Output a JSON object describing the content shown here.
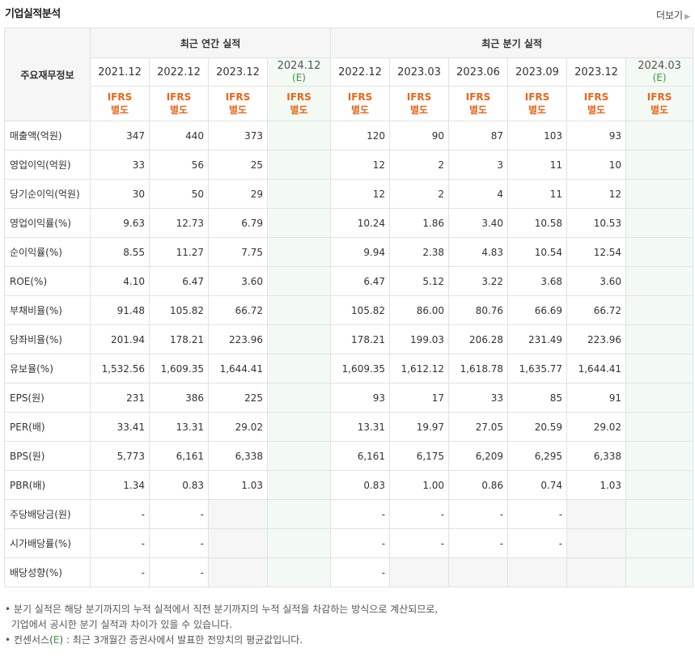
{
  "header": {
    "title": "기업실적분석",
    "more_label": "더보기"
  },
  "table": {
    "row_header_label": "주요재무정보",
    "annual_group_label": "최근 연간 실적",
    "quarter_group_label": "최근 분기 실적",
    "periods": [
      {
        "label": "2021.12",
        "est": false
      },
      {
        "label": "2022.12",
        "est": false
      },
      {
        "label": "2023.12",
        "est": false
      },
      {
        "label": "2024.12",
        "est": true,
        "est_mark": "(E)"
      },
      {
        "label": "2022.12",
        "est": false
      },
      {
        "label": "2023.03",
        "est": false
      },
      {
        "label": "2023.06",
        "est": false
      },
      {
        "label": "2023.09",
        "est": false
      },
      {
        "label": "2023.12",
        "est": false
      },
      {
        "label": "2024.03",
        "est": true,
        "est_mark": "(E)"
      }
    ],
    "ifrs_line1": "IFRS",
    "ifrs_line2": "별도",
    "rows": [
      {
        "label": "매출액(억원)",
        "values": [
          "347",
          "440",
          "373",
          "",
          "120",
          "90",
          "87",
          "103",
          "93",
          ""
        ],
        "group_start": true
      },
      {
        "label": "영업이익(억원)",
        "values": [
          "33",
          "56",
          "25",
          "",
          "12",
          "2",
          "3",
          "11",
          "10",
          ""
        ]
      },
      {
        "label": "당기순이익(억원)",
        "values": [
          "30",
          "50",
          "29",
          "",
          "12",
          "2",
          "4",
          "11",
          "12",
          ""
        ]
      },
      {
        "label": "영업이익률(%)",
        "values": [
          "9.63",
          "12.73",
          "6.79",
          "",
          "10.24",
          "1.86",
          "3.40",
          "10.58",
          "10.53",
          ""
        ],
        "group_start": true
      },
      {
        "label": "순이익률(%)",
        "values": [
          "8.55",
          "11.27",
          "7.75",
          "",
          "9.94",
          "2.38",
          "4.83",
          "10.54",
          "12.54",
          ""
        ]
      },
      {
        "label": "ROE(%)",
        "values": [
          "4.10",
          "6.47",
          "3.60",
          "",
          "6.47",
          "5.12",
          "3.22",
          "3.68",
          "3.60",
          ""
        ]
      },
      {
        "label": "부채비율(%)",
        "values": [
          "91.48",
          "105.82",
          "66.72",
          "",
          "105.82",
          "86.00",
          "80.76",
          "66.69",
          "66.72",
          ""
        ],
        "group_start": true
      },
      {
        "label": "당좌비율(%)",
        "values": [
          "201.94",
          "178.21",
          "223.96",
          "",
          "178.21",
          "199.03",
          "206.28",
          "231.49",
          "223.96",
          ""
        ]
      },
      {
        "label": "유보율(%)",
        "values": [
          "1,532.56",
          "1,609.35",
          "1,644.41",
          "",
          "1,609.35",
          "1,612.12",
          "1,618.78",
          "1,635.77",
          "1,644.41",
          ""
        ]
      },
      {
        "label": "EPS(원)",
        "values": [
          "231",
          "386",
          "225",
          "",
          "93",
          "17",
          "33",
          "85",
          "91",
          ""
        ],
        "group_start": true
      },
      {
        "label": "PER(배)",
        "values": [
          "33.41",
          "13.31",
          "29.02",
          "",
          "13.31",
          "19.97",
          "27.05",
          "20.59",
          "29.02",
          ""
        ]
      },
      {
        "label": "BPS(원)",
        "values": [
          "5,773",
          "6,161",
          "6,338",
          "",
          "6,161",
          "6,175",
          "6,209",
          "6,295",
          "6,338",
          ""
        ]
      },
      {
        "label": "PBR(배)",
        "values": [
          "1.34",
          "0.83",
          "1.03",
          "",
          "0.83",
          "1.00",
          "0.86",
          "0.74",
          "1.03",
          ""
        ]
      },
      {
        "label": "주당배당금(원)",
        "values": [
          "-",
          "-",
          "",
          "",
          "-",
          "-",
          "-",
          "-",
          "",
          ""
        ],
        "group_start": true,
        "gray": [
          2,
          8
        ]
      },
      {
        "label": "시가배당률(%)",
        "values": [
          "-",
          "-",
          "",
          "",
          "-",
          "-",
          "-",
          "-",
          "",
          ""
        ],
        "gray": [
          2,
          8
        ]
      },
      {
        "label": "배당성향(%)",
        "values": [
          "-",
          "-",
          "",
          "",
          "-",
          "",
          "",
          "",
          "",
          ""
        ],
        "gray": [
          2,
          5,
          6,
          7,
          8
        ]
      }
    ]
  },
  "notes": {
    "line1": "분기 실적은 해당 분기까지의 누적 실적에서 직전 분기까지의 누적 실적을 차감하는 방식으로 계산되므로,",
    "line2": "기업에서 공시한 분기 실적과 차이가 있을 수 있습니다.",
    "line3_pre": "컨센서스(",
    "line3_e": "E",
    "line3_post": ") : 최근 3개월간 증권사에서 발표한 전망치의 평균값입니다."
  }
}
